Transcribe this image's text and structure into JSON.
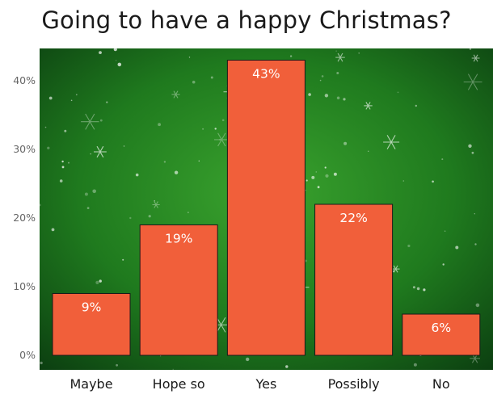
{
  "title": "Going to have a happy Christmas?",
  "chart_data": {
    "type": "bar",
    "title": "Going to have a happy Christmas?",
    "categories": [
      "Maybe",
      "Hope so",
      "Yes",
      "Possibly",
      "No"
    ],
    "values": [
      9,
      19,
      43,
      22,
      6
    ],
    "value_labels": [
      "9%",
      "19%",
      "43%",
      "22%",
      "6%"
    ],
    "y_ticks": [
      0,
      10,
      20,
      30,
      40
    ],
    "y_tick_labels": [
      "0%",
      "10%",
      "20%",
      "30%",
      "40%"
    ],
    "ylim": [
      0,
      44
    ],
    "xlabel": "",
    "ylabel": "",
    "grid": false,
    "legend": "none",
    "colors": {
      "bar": "#f15f3a",
      "bar_edge": "#1a1a1a",
      "background_dark": "#0b3d10",
      "background_light": "#3aa32e",
      "snowflake": "#ffffff"
    }
  }
}
